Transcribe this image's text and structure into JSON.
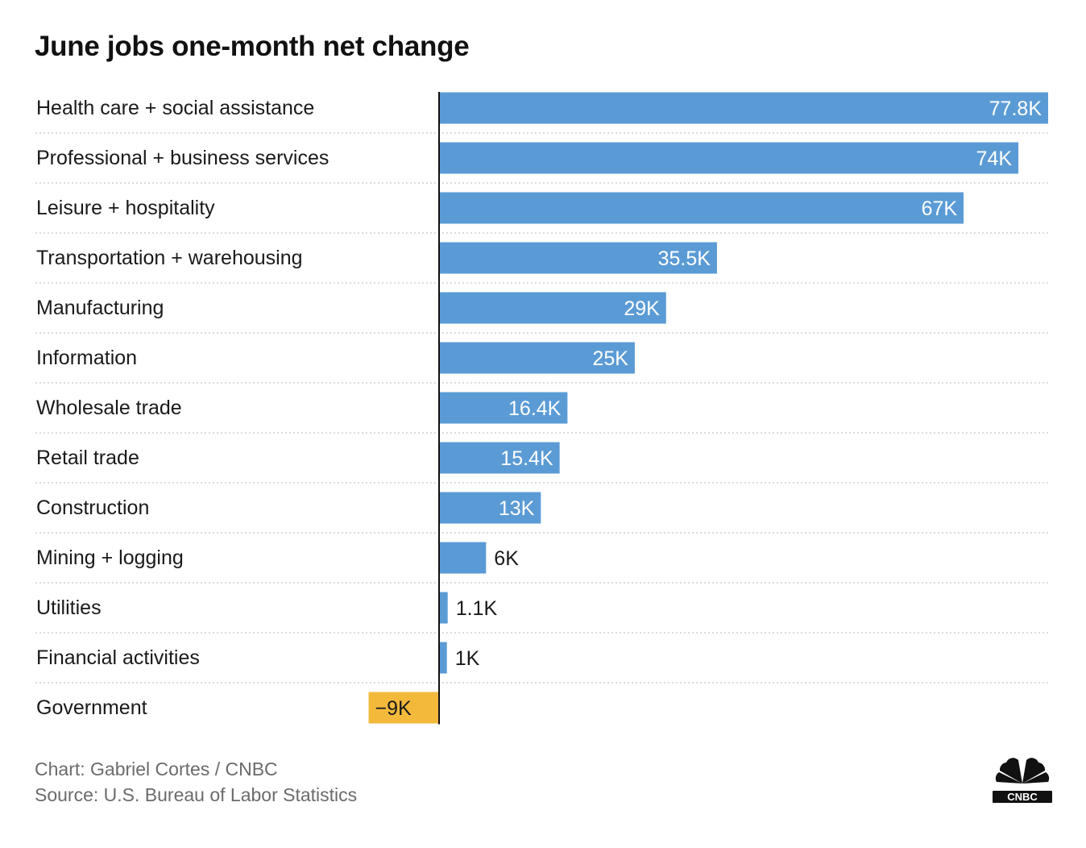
{
  "header": {
    "title": "June jobs one-month net change"
  },
  "chart_data": {
    "type": "bar",
    "orientation": "horizontal",
    "title": "June jobs one-month net change",
    "xlabel": "",
    "ylabel": "",
    "xlim": [
      -9,
      77.8
    ],
    "grid": "dotted row separators",
    "categories": [
      "Health care + social assistance",
      "Professional + business services",
      "Leisure + hospitality",
      "Transportation + warehousing",
      "Manufacturing",
      "Information",
      "Wholesale trade",
      "Retail trade",
      "Construction",
      "Mining + logging",
      "Utilities",
      "Financial activities",
      "Government"
    ],
    "values": [
      77.8,
      74,
      67,
      35.5,
      29,
      25,
      16.4,
      15.4,
      13,
      6,
      1.1,
      1,
      -9
    ],
    "value_labels": [
      "77.8K",
      "74K",
      "67K",
      "35.5K",
      "29K",
      "25K",
      "16.4K",
      "15.4K",
      "13K",
      "6K",
      "1.1K",
      "1K",
      "−9K"
    ],
    "unit": "thousands of jobs",
    "colors": {
      "positive": "#5b9bd5",
      "negative": "#f2b93b",
      "axis": "#111111",
      "gridline": "#cfcfcf"
    }
  },
  "footer": {
    "credit": "Chart: Gabriel Cortes / CNBC",
    "source": "Source: U.S. Bureau of Labor Statistics"
  },
  "logo": {
    "icon": "cnbc-peacock-icon",
    "text": "CNBC"
  }
}
